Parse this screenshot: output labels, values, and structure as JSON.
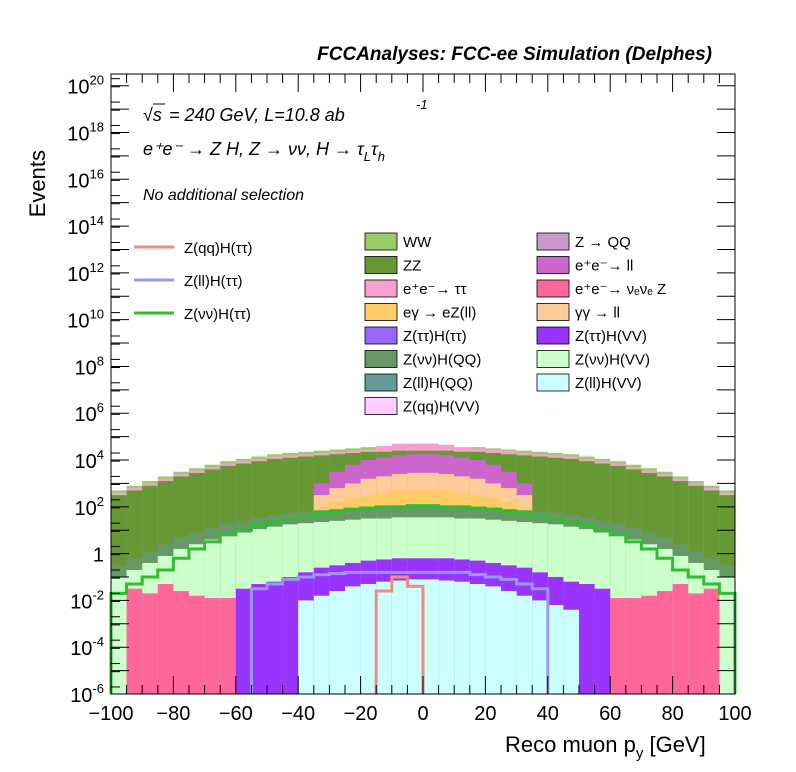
{
  "chart_data": {
    "type": "area",
    "title": "FCCAnalyses: FCC-ee Simulation (Delphes)",
    "xlabel_prefix": "Reco muon p",
    "xlabel_sub": "y",
    "xlabel_suffix": " [GeV]",
    "ylabel": "Events",
    "xlim": [
      -100,
      100
    ],
    "ylim_log10": [
      -6,
      20.5
    ],
    "y_scale": "log",
    "grid": false,
    "x_ticks": [
      "−100",
      "−80",
      "−60",
      "−40",
      "−20",
      "0",
      "20",
      "40",
      "60",
      "80",
      "100"
    ],
    "annotations": {
      "energy_label": "= 240 GeV, L=10.8 ab",
      "energy_sup": "-1",
      "process_label": "e⁺e⁻ → Z H, Z → νν, H → τ",
      "process_sub1": "L",
      "process_mid": "τ",
      "process_sub2": "h",
      "selection": "No additional selection"
    },
    "signal_legend": [
      {
        "name": "Z(qq)H(ττ)",
        "color": "#f08c80"
      },
      {
        "name": "Z(ll)H(ττ)",
        "color": "#9999ee"
      },
      {
        "name": "Z(νν)H(ττ)",
        "color": "#33bb33"
      }
    ],
    "legend_col1": [
      {
        "name": "WW",
        "color": "#99cc66"
      },
      {
        "name": "ZZ",
        "color": "#669933"
      },
      {
        "name": "e⁺e⁻→ ττ",
        "color": "#f7a0d0"
      },
      {
        "name": "eγ → eZ(ll)",
        "color": "#ffcc66"
      },
      {
        "name": "Z(ττ)H(ττ)",
        "color": "#9966ff"
      },
      {
        "name": "Z(νν)H(QQ)",
        "color": "#669966"
      },
      {
        "name": "Z(ll)H(QQ)",
        "color": "#669999"
      },
      {
        "name": "Z(qq)H(VV)",
        "color": "#ffccff"
      }
    ],
    "legend_col2": [
      {
        "name": "Z → QQ",
        "color": "#cc99cc"
      },
      {
        "name": "e⁺e⁻→ ll",
        "color": "#cc66cc"
      },
      {
        "name": "e⁺e⁻→ νₑνₑ Z",
        "color": "#ff6699"
      },
      {
        "name": "γγ → ll",
        "color": "#ffcc99"
      },
      {
        "name": "Z(ττ)H(VV)",
        "color": "#9933ff"
      },
      {
        "name": "Z(νν)H(VV)",
        "color": "#ccffcc"
      },
      {
        "name": "Z(ll)H(VV)",
        "color": "#ccffff"
      }
    ],
    "stack_levels": [
      {
        "name": "WW",
        "color": "#99cc66",
        "log10_values": [
          2.7,
          2.9,
          3.1,
          3.3,
          3.5,
          3.65,
          3.8,
          3.95,
          4.05,
          4.15,
          4.25,
          4.3,
          4.35,
          4.4,
          4.45,
          4.5,
          4.55,
          4.55,
          4.6,
          4.6,
          4.6,
          4.6,
          4.55,
          4.55,
          4.5,
          4.45,
          4.4,
          4.35,
          4.3,
          4.25,
          4.15,
          4.05,
          3.95,
          3.8,
          3.65,
          3.5,
          3.3,
          3.1,
          2.9,
          2.7
        ]
      },
      {
        "name": "e⁺e⁻→ ττ",
        "color": "#f7a0d0",
        "log10_values": [
          2.6,
          2.8,
          3.0,
          3.2,
          3.4,
          3.55,
          3.7,
          3.85,
          3.95,
          4.05,
          4.15,
          4.2,
          4.25,
          4.3,
          4.35,
          4.4,
          4.45,
          4.6,
          4.7,
          4.7,
          4.7,
          4.65,
          4.55,
          4.5,
          4.45,
          4.4,
          4.3,
          4.25,
          4.2,
          4.15,
          4.05,
          3.95,
          3.85,
          3.7,
          3.55,
          3.4,
          3.2,
          3.0,
          2.8,
          2.6
        ]
      },
      {
        "name": "ZZ",
        "color": "#669933",
        "log10_values": [
          2.5,
          2.7,
          2.9,
          3.1,
          3.3,
          3.45,
          3.6,
          3.75,
          3.85,
          3.95,
          4.05,
          4.1,
          4.15,
          4.2,
          4.25,
          4.3,
          4.35,
          4.35,
          4.4,
          4.4,
          4.4,
          4.4,
          4.35,
          4.35,
          4.3,
          4.25,
          4.2,
          4.15,
          4.1,
          4.05,
          3.95,
          3.85,
          3.75,
          3.6,
          3.45,
          3.3,
          3.1,
          2.9,
          2.7,
          2.5
        ]
      },
      {
        "name": "e⁺e⁻→ ll",
        "color": "#cc66cc",
        "log10_values": [
          -6,
          -6,
          -6,
          -6,
          -6,
          -6,
          -6,
          -6,
          -6,
          -6,
          -6,
          -6,
          -6,
          3.0,
          3.5,
          3.8,
          4.0,
          4.1,
          4.2,
          4.25,
          4.25,
          4.2,
          4.1,
          4.0,
          3.8,
          3.5,
          3.0,
          -6,
          -6,
          -6,
          -6,
          -6,
          -6,
          -6,
          -6,
          -6,
          -6,
          -6,
          -6,
          -6
        ]
      },
      {
        "name": "γγ → ll",
        "color": "#ffcc99",
        "log10_values": [
          -6,
          -6,
          -6,
          -6,
          -6,
          -6,
          -6,
          -6,
          -6,
          -6,
          -6,
          -6,
          -6,
          2.5,
          2.8,
          3.0,
          3.2,
          3.3,
          3.4,
          3.45,
          3.45,
          3.4,
          3.3,
          3.2,
          3.0,
          2.8,
          2.5,
          -6,
          -6,
          -6,
          -6,
          -6,
          -6,
          -6,
          -6,
          -6,
          -6,
          -6,
          -6,
          -6
        ]
      },
      {
        "name": "eγ → eZ(ll)",
        "color": "#ffcc66",
        "log10_values": [
          -6,
          -6,
          -6,
          -6,
          -6,
          -6,
          -6,
          -6,
          -6,
          -6,
          -6,
          -6,
          -6,
          2.0,
          2.2,
          2.4,
          2.5,
          2.6,
          2.7,
          2.7,
          2.7,
          2.7,
          2.6,
          2.5,
          2.4,
          2.2,
          2.0,
          -6,
          -6,
          -6,
          -6,
          -6,
          -6,
          -6,
          -6,
          -6,
          -6,
          -6,
          -6,
          -6
        ]
      },
      {
        "name": "Z(νν)H(QQ)",
        "color": "#669966",
        "log10_values": [
          -0.5,
          -0.2,
          0.1,
          0.4,
          0.7,
          0.9,
          1.1,
          1.3,
          1.4,
          1.55,
          1.65,
          1.75,
          1.8,
          1.85,
          1.9,
          1.95,
          2.0,
          2.0,
          2.05,
          2.05,
          2.05,
          2.05,
          2.0,
          2.0,
          1.95,
          1.9,
          1.85,
          1.8,
          1.75,
          1.65,
          1.55,
          1.4,
          1.3,
          1.1,
          0.9,
          0.7,
          0.4,
          0.1,
          -0.2,
          -0.5
        ]
      },
      {
        "name": "Z(νν)H(VV)",
        "color": "#ccffcc",
        "log10_values": [
          -1.0,
          -0.7,
          -0.4,
          -0.1,
          0.2,
          0.4,
          0.6,
          0.8,
          0.9,
          1.05,
          1.15,
          1.25,
          1.3,
          1.35,
          1.4,
          1.45,
          1.5,
          1.5,
          1.55,
          1.55,
          1.55,
          1.55,
          1.5,
          1.5,
          1.45,
          1.4,
          1.35,
          1.3,
          1.25,
          1.15,
          1.05,
          0.9,
          0.8,
          0.6,
          0.4,
          0.2,
          -0.1,
          -0.4,
          -0.7,
          -1.0
        ]
      },
      {
        "name": "e⁺e⁻→ νₑνₑ Z",
        "color": "#ff6699",
        "log10_values": [
          -6,
          -1.5,
          -1.7,
          -1.3,
          -1.6,
          -1.8,
          -1.9,
          -1.9,
          -2.0,
          -1.9,
          -1.8,
          -1.8,
          -1.7,
          -1.7,
          -1.6,
          -1.6,
          -1.6,
          -1.5,
          -1.5,
          -1.5,
          -1.5,
          -1.5,
          -1.5,
          -1.6,
          -1.6,
          -1.6,
          -1.7,
          -1.7,
          -1.8,
          -1.8,
          -1.9,
          -2.0,
          -1.9,
          -1.9,
          -1.8,
          -1.6,
          -1.3,
          -1.7,
          -1.5,
          -6
        ]
      },
      {
        "name": "Z(ττ)H(VV)",
        "color": "#9933ff",
        "log10_values": [
          -6,
          -6,
          -6,
          -6,
          -6,
          -6,
          -6,
          -6,
          -1.5,
          -1.3,
          -1.2,
          -1.0,
          -0.8,
          -0.6,
          -0.5,
          -0.4,
          -0.3,
          -0.25,
          -0.2,
          -0.2,
          -0.2,
          -0.2,
          -0.25,
          -0.3,
          -0.4,
          -0.5,
          -0.6,
          -0.8,
          -1.0,
          -1.2,
          -1.3,
          -1.5,
          -6,
          -6,
          -6,
          -6,
          -6,
          -6,
          -6,
          -6
        ]
      },
      {
        "name": "Z(ll)H(VV)",
        "color": "#ccffff",
        "log10_values": [
          -6,
          -6,
          -6,
          -6,
          -6,
          -6,
          -6,
          -6,
          -6,
          -6,
          -6,
          -6,
          -2.0,
          -1.8,
          -1.6,
          -1.4,
          -1.3,
          -1.2,
          -1.15,
          -1.1,
          -1.1,
          -1.15,
          -1.2,
          -1.3,
          -1.4,
          -1.6,
          -1.8,
          -2.0,
          -2.2,
          -2.4,
          -6,
          -6,
          -6,
          -6,
          -6,
          -6,
          -6,
          -6,
          -6,
          -6
        ]
      }
    ],
    "bin_width": 5,
    "signal_lines": [
      {
        "name": "Z(νν)H(ττ)",
        "color": "#33bb33",
        "log10_values": [
          -1.7,
          -1.3,
          -1.0,
          -0.7,
          -0.2,
          0.2,
          0.5,
          0.8,
          1.0,
          1.2,
          1.35,
          1.5,
          1.6,
          1.7,
          1.8,
          1.9,
          1.95,
          2.0,
          2.0,
          2.05,
          2.05,
          2.0,
          2.0,
          1.95,
          1.9,
          1.8,
          1.7,
          1.6,
          1.5,
          1.35,
          1.2,
          1.0,
          0.8,
          0.5,
          0.2,
          -0.2,
          -0.7,
          -1.0,
          -1.3,
          -1.7
        ]
      },
      {
        "name": "Z(ll)H(ττ)",
        "color": "#9999ee",
        "log10_values": [
          -6,
          -6,
          -6,
          -6,
          -6,
          -6,
          -6,
          -6,
          -6,
          -1.5,
          -1.3,
          -1.1,
          -1.0,
          -0.9,
          -0.85,
          -0.8,
          -0.8,
          -0.8,
          -0.8,
          -0.8,
          -0.8,
          -0.8,
          -0.8,
          -0.9,
          -1.0,
          -1.1,
          -1.3,
          -1.5,
          -6,
          -6,
          -6,
          -6,
          -6,
          -6,
          -6,
          -6,
          -6,
          -6,
          -6,
          -6
        ]
      },
      {
        "name": "Z(qq)H(ττ)",
        "color": "#f08c80",
        "log10_values": [
          -6,
          -6,
          -6,
          -6,
          -6,
          -6,
          -6,
          -6,
          -6,
          -6,
          -6,
          -6,
          -6,
          -6,
          -6,
          -6,
          -6,
          -1.6,
          -1.0,
          -1.4,
          -6,
          -6,
          -6,
          -6,
          -6,
          -6,
          -6,
          -6,
          -6,
          -6,
          -6,
          -6,
          -6,
          -6,
          -6,
          -6,
          -6,
          -6,
          -6,
          -6
        ]
      }
    ]
  }
}
